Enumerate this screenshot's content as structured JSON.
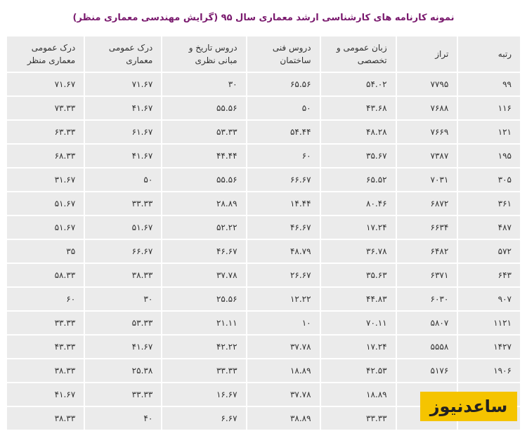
{
  "header": {
    "title": "نمونه کارنامه های کارشناسی ارشد معماری سال ۹۵ (گرایش مهندسی معماری منظر)"
  },
  "table": {
    "columns": [
      "رتبه",
      "تراز",
      "زبان عمومی و تخصصی",
      "دروس فنی ساختمان",
      "دروس تاریخ و مبانی نظری",
      "درک عمومی معماری",
      "درک عمومی معماری منظر"
    ],
    "rows": [
      [
        "۹۹",
        "۷۷۹۵",
        "۵۴.۰۲",
        "۶۵.۵۶",
        "۳۰",
        "۷۱.۶۷",
        "۷۱.۶۷"
      ],
      [
        "۱۱۶",
        "۷۶۸۸",
        "۴۳.۶۸",
        "۵۰",
        "۵۵.۵۶",
        "۴۱.۶۷",
        "۷۳.۳۳"
      ],
      [
        "۱۲۱",
        "۷۶۶۹",
        "۴۸.۲۸",
        "۵۴.۴۴",
        "۵۳.۳۳",
        "۶۱.۶۷",
        "۶۳.۳۳"
      ],
      [
        "۱۹۵",
        "۷۳۸۷",
        "۳۵.۶۷",
        "۶۰",
        "۴۴.۴۴",
        "۴۱.۶۷",
        "۶۸.۳۳"
      ],
      [
        "۳۰۵",
        "۷۰۳۱",
        "۶۵.۵۲",
        "۶۶.۶۷",
        "۵۵.۵۶",
        "۵۰",
        "۳۱.۶۷"
      ],
      [
        "۳۶۱",
        "۶۸۷۲",
        "۸۰.۴۶",
        "۱۴.۴۴",
        "۲۸.۸۹",
        "۳۳.۳۳",
        "۵۱.۶۷"
      ],
      [
        "۴۸۷",
        "۶۶۳۴",
        "۱۷.۲۴",
        "۴۶.۶۷",
        "۵۲.۲۲",
        "۵۱.۶۷",
        "۵۱.۶۷"
      ],
      [
        "۵۷۲",
        "۶۴۸۲",
        "۳۶.۷۸",
        "۴۸.۷۹",
        "۴۶.۶۷",
        "۶۶.۶۷",
        "۳۵"
      ],
      [
        "۶۴۳",
        "۶۳۷۱",
        "۳۵.۶۳",
        "۲۶.۶۷",
        "۳۷.۷۸",
        "۳۸.۳۳",
        "۵۸.۳۳"
      ],
      [
        "۹۰۷",
        "۶۰۳۰",
        "۴۴.۸۳",
        "۱۲.۲۲",
        "۲۵.۵۶",
        "۳۰",
        "۶۰"
      ],
      [
        "۱۱۲۱",
        "۵۸۰۷",
        "۷۰.۱۱",
        "۱۰",
        "۲۱.۱۱",
        "۵۳.۳۳",
        "۳۳.۳۳"
      ],
      [
        "۱۴۲۷",
        "۵۵۵۸",
        "۱۷.۲۴",
        "۳۷.۷۸",
        "۴۲.۲۲",
        "۴۱.۶۷",
        "۴۳.۳۳"
      ],
      [
        "۱۹۰۶",
        "۵۱۷۶",
        "۴۲.۵۳",
        "۱۸.۸۹",
        "۳۳.۳۳",
        "۲۵.۳۸",
        "۳۸.۳۳"
      ],
      [
        null,
        null,
        "۱۸.۸۹",
        "۳۷.۷۸",
        "۱۶.۶۷",
        "۳۳.۳۳",
        "۴۱.۶۷"
      ],
      [
        null,
        null,
        "۳۳.۳۳",
        "۳۸.۸۹",
        "۶.۶۷",
        "۴۰",
        "۳۸.۳۳"
      ]
    ]
  },
  "watermark": {
    "text": "ساعدنیوز"
  }
}
